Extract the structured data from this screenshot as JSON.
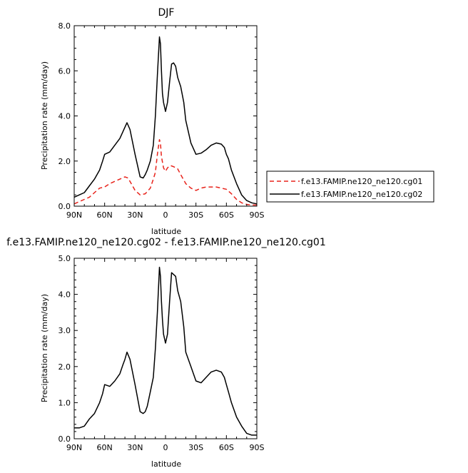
{
  "chart_data": [
    {
      "type": "line",
      "title": "DJF",
      "xlabel": "latitude",
      "ylabel": "Precipitation rate (mm/day)",
      "xlim": [
        90,
        -90
      ],
      "ylim": [
        0,
        8
      ],
      "x_ticks": [
        "90N",
        "60N",
        "30N",
        "0",
        "30S",
        "60S",
        "90S"
      ],
      "y_ticks": [
        "0.0",
        "2.0",
        "4.0",
        "6.0",
        "8.0"
      ],
      "series": [
        {
          "name": "f.e13.FAMIP.ne120_ne120.cg01",
          "color": "#e8231b",
          "style": "dashed",
          "x": [
            90,
            80,
            75,
            70,
            65,
            60,
            55,
            50,
            45,
            40,
            37,
            35,
            30,
            25,
            20,
            15,
            12,
            10,
            8,
            6,
            5,
            4,
            2,
            0,
            -2,
            -5,
            -8,
            -10,
            -12,
            -15,
            -20,
            -25,
            -30,
            -35,
            -40,
            -45,
            -50,
            -55,
            -60,
            -65,
            -70,
            -75,
            -80,
            -85,
            -90
          ],
          "y": [
            0.1,
            0.3,
            0.4,
            0.6,
            0.8,
            0.85,
            1.0,
            1.1,
            1.2,
            1.3,
            1.25,
            1.1,
            0.7,
            0.5,
            0.55,
            0.8,
            1.2,
            1.5,
            2.3,
            2.95,
            2.8,
            2.2,
            1.7,
            1.55,
            1.7,
            1.8,
            1.75,
            1.7,
            1.65,
            1.4,
            1.0,
            0.8,
            0.7,
            0.8,
            0.85,
            0.85,
            0.85,
            0.8,
            0.75,
            0.55,
            0.3,
            0.15,
            0.08,
            0.05,
            0.05
          ]
        },
        {
          "name": "f.e13.FAMIP.ne120_ne120.cg02",
          "color": "#000000",
          "style": "solid",
          "x": [
            90,
            85,
            80,
            75,
            70,
            65,
            62,
            60,
            55,
            50,
            45,
            42,
            40,
            38,
            35,
            30,
            25,
            22,
            20,
            18,
            15,
            12,
            10,
            8,
            6,
            5,
            4,
            3,
            2,
            0,
            -2,
            -4,
            -6,
            -8,
            -10,
            -12,
            -15,
            -18,
            -20,
            -25,
            -30,
            -35,
            -40,
            -45,
            -50,
            -55,
            -58,
            -60,
            -62,
            -65,
            -70,
            -75,
            -80,
            -85,
            -90
          ],
          "y": [
            0.4,
            0.5,
            0.6,
            0.9,
            1.2,
            1.6,
            2.0,
            2.3,
            2.4,
            2.7,
            3.0,
            3.3,
            3.5,
            3.7,
            3.4,
            2.3,
            1.3,
            1.25,
            1.4,
            1.6,
            2.0,
            2.7,
            4.0,
            5.8,
            7.5,
            7.2,
            6.0,
            5.0,
            4.6,
            4.2,
            4.6,
            5.5,
            6.3,
            6.35,
            6.2,
            5.7,
            5.3,
            4.6,
            3.8,
            2.8,
            2.3,
            2.35,
            2.5,
            2.7,
            2.8,
            2.75,
            2.6,
            2.3,
            2.1,
            1.6,
            1.0,
            0.5,
            0.25,
            0.15,
            0.1
          ]
        }
      ],
      "legend": "right"
    },
    {
      "type": "line",
      "title": "f.e13.FAMIP.ne120_ne120.cg02 - f.e13.FAMIP.ne120_ne120.cg01",
      "xlabel": "latitude",
      "ylabel": "Precipitation rate (mm/day)",
      "xlim": [
        90,
        -90
      ],
      "ylim": [
        0,
        5
      ],
      "x_ticks": [
        "90N",
        "60N",
        "30N",
        "0",
        "30S",
        "60S",
        "90S"
      ],
      "y_ticks": [
        "0.0",
        "1.0",
        "2.0",
        "3.0",
        "4.0",
        "5.0"
      ],
      "series": [
        {
          "color": "#000000",
          "style": "solid",
          "x": [
            90,
            85,
            80,
            75,
            70,
            65,
            62,
            60,
            55,
            50,
            45,
            42,
            40,
            38,
            35,
            30,
            25,
            22,
            20,
            18,
            15,
            12,
            10,
            8,
            6,
            5,
            4,
            3,
            2,
            0,
            -2,
            -4,
            -6,
            -8,
            -10,
            -12,
            -15,
            -18,
            -20,
            -25,
            -30,
            -35,
            -40,
            -45,
            -50,
            -55,
            -58,
            -60,
            -62,
            -65,
            -70,
            -75,
            -80,
            -85,
            -90
          ],
          "y": [
            0.3,
            0.3,
            0.35,
            0.55,
            0.7,
            1.0,
            1.25,
            1.5,
            1.45,
            1.6,
            1.8,
            2.05,
            2.2,
            2.4,
            2.2,
            1.5,
            0.75,
            0.7,
            0.75,
            0.9,
            1.3,
            1.7,
            2.5,
            3.5,
            4.75,
            4.5,
            3.8,
            3.3,
            2.9,
            2.65,
            2.9,
            3.8,
            4.6,
            4.55,
            4.5,
            4.1,
            3.8,
            3.1,
            2.4,
            2.0,
            1.6,
            1.55,
            1.7,
            1.85,
            1.9,
            1.85,
            1.7,
            1.5,
            1.3,
            1.0,
            0.6,
            0.35,
            0.15,
            0.1,
            0.1
          ]
        }
      ],
      "legend": "none"
    }
  ]
}
